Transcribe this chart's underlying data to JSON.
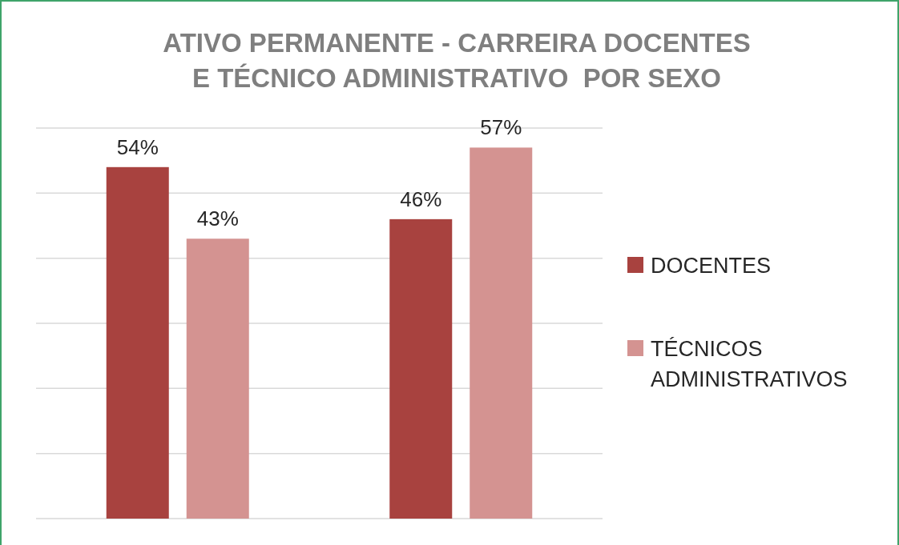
{
  "chart_data": {
    "type": "bar",
    "title": "ATIVO PERMANENTE - CARREIRA DOCENTES\nE TÉCNICO ADMINISTRATIVO  POR SEXO",
    "categories": [
      null,
      null
    ],
    "series": [
      {
        "name": "DOCENTES",
        "color": "#a8423f",
        "values": [
          54,
          46
        ],
        "value_labels": [
          "54%",
          "46%"
        ]
      },
      {
        "name": "TÉCNICOS\nADMINISTRATIVOS",
        "color": "#d49391",
        "values": [
          43,
          57
        ],
        "value_labels": [
          "43%",
          "57%"
        ]
      }
    ],
    "ylim": [
      0,
      60
    ],
    "yticks": [
      {
        "value": 0,
        "label": null
      },
      {
        "value": 10,
        "label": null
      },
      {
        "value": 20,
        "label": null
      },
      {
        "value": 30,
        "label": null
      },
      {
        "value": 40,
        "label": null
      },
      {
        "value": 50,
        "label": null
      },
      {
        "value": 60,
        "label": null
      }
    ],
    "grid": "y",
    "legend": "right"
  }
}
